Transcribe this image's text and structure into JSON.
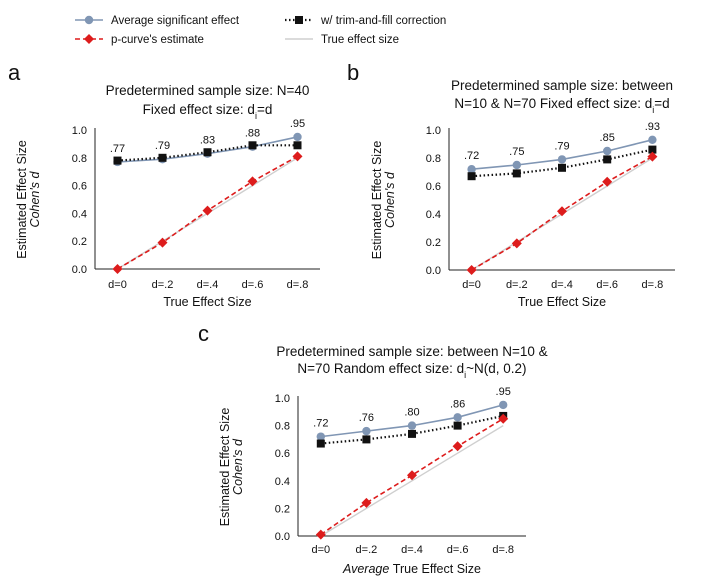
{
  "legend": {
    "items": [
      {
        "label": "Average significant effect",
        "color": "#8096b4",
        "marker": "circle",
        "dash": "solid"
      },
      {
        "label": "w/ trim-and-fill correction",
        "color": "#111111",
        "marker": "square",
        "dash": "dotted"
      },
      {
        "label": "p-curve's estimate",
        "color": "#dd1c1c",
        "marker": "diamond",
        "dash": "dashed"
      },
      {
        "label": "True effect size",
        "color": "#cfcfcf",
        "marker": "none",
        "dash": "solid"
      }
    ]
  },
  "chart_data": [
    {
      "panel_letter": "a",
      "type": "line",
      "title_lines": [
        {
          "text": "Predetermined sample size: N=40"
        },
        {
          "text": "Fixed effect size: d",
          "sub": "i",
          "after": "=d"
        }
      ],
      "xlabel": "True Effect Size",
      "xlabel_prefix": "",
      "ylabel": "Estimated Effect Size",
      "ylabel2": "Cohen's d",
      "categories": [
        "d=0",
        "d=.2",
        "d=.4",
        "d=.6",
        "d=.8"
      ],
      "ylim": [
        0,
        1
      ],
      "yticks": [
        "0.0",
        "0.2",
        "0.4",
        "0.6",
        "0.8",
        "1.0"
      ],
      "series": [
        {
          "name": "Average significant effect",
          "values": [
            0.77,
            0.79,
            0.83,
            0.88,
            0.95
          ],
          "labels": [
            ".77",
            ".79",
            ".83",
            ".88",
            ".95"
          ]
        },
        {
          "name": "w/ trim-and-fill correction",
          "values": [
            0.78,
            0.8,
            0.84,
            0.89,
            0.89
          ]
        },
        {
          "name": "p-curve's estimate",
          "values": [
            0.0,
            0.19,
            0.42,
            0.63,
            0.81
          ]
        },
        {
          "name": "True effect size",
          "values": [
            0.0,
            0.2,
            0.4,
            0.6,
            0.8
          ]
        }
      ]
    },
    {
      "panel_letter": "b",
      "type": "line",
      "title_lines": [
        {
          "text": "Predetermined sample size: between"
        },
        {
          "text": "N=10 & N=70 Fixed effect size: d",
          "sub": "i",
          "after": "=d"
        }
      ],
      "xlabel": "True Effect Size",
      "xlabel_prefix": "",
      "ylabel": "Estimated Effect Size",
      "ylabel2": "Cohen's d",
      "categories": [
        "d=0",
        "d=.2",
        "d=.4",
        "d=.6",
        "d=.8"
      ],
      "ylim": [
        0,
        1
      ],
      "yticks": [
        "0.0",
        "0.2",
        "0.4",
        "0.6",
        "0.8",
        "1.0"
      ],
      "series": [
        {
          "name": "Average significant effect",
          "values": [
            0.72,
            0.75,
            0.79,
            0.85,
            0.93
          ],
          "labels": [
            ".72",
            ".75",
            ".79",
            ".85",
            ".93"
          ]
        },
        {
          "name": "w/ trim-and-fill correction",
          "values": [
            0.67,
            0.69,
            0.73,
            0.79,
            0.86
          ]
        },
        {
          "name": "p-curve's estimate",
          "values": [
            0.0,
            0.19,
            0.42,
            0.63,
            0.81
          ]
        },
        {
          "name": "True effect size",
          "values": [
            0.0,
            0.2,
            0.4,
            0.6,
            0.8
          ]
        }
      ]
    },
    {
      "panel_letter": "c",
      "type": "line",
      "title_lines": [
        {
          "text": "Predetermined sample size: between N=10 &"
        },
        {
          "text": "N=70 Random effect size: d",
          "sub": "i",
          "after": "~N(d, 0.2)"
        }
      ],
      "xlabel": "True Effect Size",
      "xlabel_prefix": "Average",
      "ylabel": "Estimated Effect Size",
      "ylabel2": "Cohen's d",
      "categories": [
        "d=0",
        "d=.2",
        "d=.4",
        "d=.6",
        "d=.8"
      ],
      "ylim": [
        0,
        1
      ],
      "yticks": [
        "0.0",
        "0.2",
        "0.4",
        "0.6",
        "0.8",
        "1.0"
      ],
      "series": [
        {
          "name": "Average significant effect",
          "values": [
            0.72,
            0.76,
            0.8,
            0.86,
            0.95
          ],
          "labels": [
            ".72",
            ".76",
            ".80",
            ".86",
            ".95"
          ]
        },
        {
          "name": "w/ trim-and-fill correction",
          "values": [
            0.67,
            0.7,
            0.74,
            0.8,
            0.87
          ]
        },
        {
          "name": "p-curve's estimate",
          "values": [
            0.01,
            0.24,
            0.44,
            0.65,
            0.85
          ]
        },
        {
          "name": "True effect size",
          "values": [
            0.0,
            0.2,
            0.4,
            0.6,
            0.8
          ]
        }
      ]
    }
  ]
}
